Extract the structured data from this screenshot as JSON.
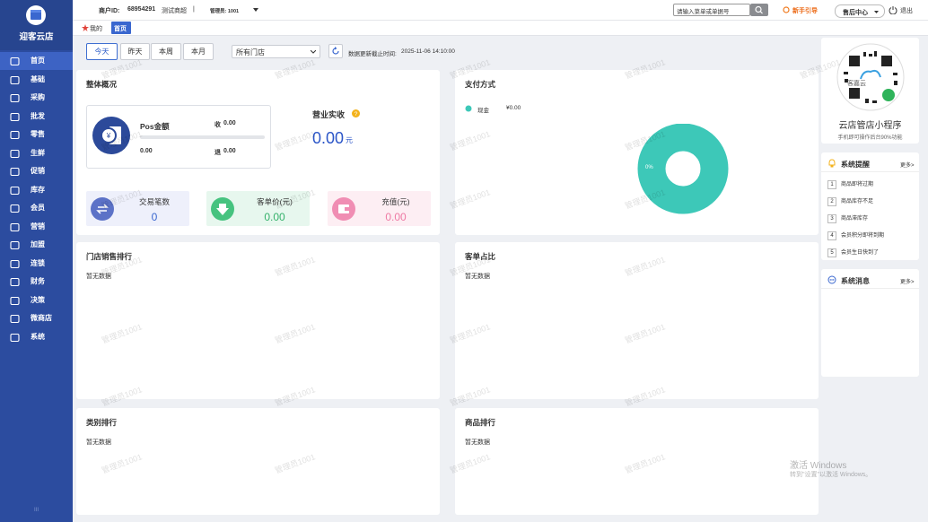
{
  "sidebar": {
    "brand": "迎客云店",
    "menu": [
      "首页",
      "基础",
      "采购",
      "批发",
      "零售",
      "生鲜",
      "促销",
      "库存",
      "会员",
      "营销",
      "加盟",
      "连锁",
      "财务",
      "决策",
      "微商店",
      "系统"
    ],
    "footer": "III"
  },
  "topbar": {
    "merchant_label": "商户ID:",
    "merchant_id": "68954291",
    "store": "测试商超",
    "separator": "|",
    "admin": "管理员: 1001",
    "search_placeholder": "请输入菜单或单据号",
    "guide": "新手引导",
    "after_sales": "售后中心",
    "logout": "退出"
  },
  "tabs": [
    "我的",
    "首页"
  ],
  "filters": {
    "periods": [
      "今天",
      "昨天",
      "本周",
      "本月"
    ],
    "store_select": "所有门店",
    "updated_label": "数据更新截止时间:",
    "updated_time": "2025-11-06 14:10:00"
  },
  "overview": {
    "title": "整体概况",
    "pos": {
      "label": "Pos金额",
      "income_label": "收",
      "income": "0.00",
      "amount": "0.00",
      "refund_label": "退",
      "refund": "0.00"
    },
    "revenue": {
      "label": "营业实收",
      "value": "0.00",
      "unit": "元"
    },
    "stats": [
      {
        "label": "交易笔数",
        "value": "0"
      },
      {
        "label": "客单价(元)",
        "value": "0.00"
      },
      {
        "label": "充值(元)",
        "value": "0.00"
      }
    ]
  },
  "payment": {
    "title": "支付方式",
    "legend": [
      {
        "name": "现金",
        "amount": "¥0.00"
      }
    ],
    "center": "0%"
  },
  "panels": [
    {
      "title": "门店销售排行",
      "empty": "暂无数据"
    },
    {
      "title": "客单占比",
      "empty": "暂无数据"
    },
    {
      "title": "类别排行",
      "empty": "暂无数据"
    },
    {
      "title": "商品排行",
      "empty": "暂无数据"
    }
  ],
  "mini_program": {
    "logo": "客嘉云",
    "title": "云店管店小程序",
    "subtitle": "手机即可操作后台90%功能"
  },
  "alerts": {
    "title": "系统提醒",
    "more": "更多>",
    "items": [
      {
        "no": "1",
        "text": "商品即将过期"
      },
      {
        "no": "2",
        "text": "商品库存不足"
      },
      {
        "no": "3",
        "text": "商品滞库存"
      },
      {
        "no": "4",
        "text": "会员积分即将到期"
      },
      {
        "no": "5",
        "text": "会员生日快到了"
      }
    ]
  },
  "messages": {
    "title": "系统消息",
    "more": "更多>"
  },
  "watermark": "管理员1001",
  "os_notice": {
    "title": "激活 Windows",
    "subtitle": "转到\"设置\"以激活 Windows。"
  }
}
